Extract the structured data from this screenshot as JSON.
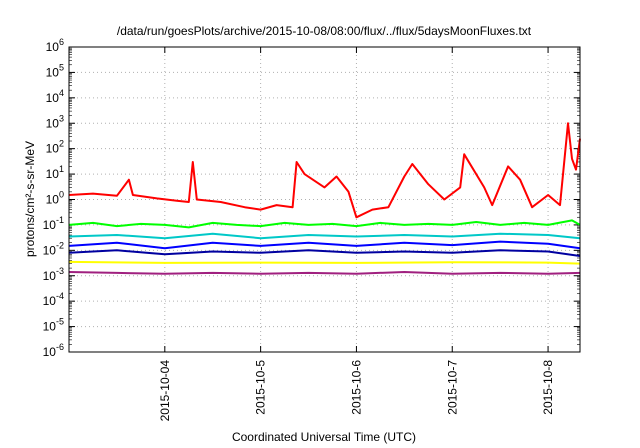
{
  "chart_data": {
    "type": "line",
    "title": "/data/run/goesPlots/archive/2015-10-08/08:00/flux/../flux/5daysMoonFluxes.txt",
    "xlabel": "Coordinated Universal Time (UTC)",
    "ylabel": "protons/cm²-s-sr-MeV",
    "yscale": "log",
    "ylim": [
      1e-06,
      1000000.0
    ],
    "xlim": [
      "2015-10-03 00:00",
      "2015-10-08 08:00"
    ],
    "x_ticks": [
      "2015-10-04",
      "2015-10-5",
      "2015-10-6",
      "2015-10-7",
      "2015-10-8"
    ],
    "y_ticks": [
      "10-6",
      "10-5",
      "10-4",
      "10-3",
      "10-2",
      "10-1",
      "100",
      "101",
      "102",
      "103",
      "104",
      "105",
      "106"
    ],
    "grid": true,
    "colors": {
      "red": "#ff0000",
      "green": "#00ff00",
      "cyan": "#00c8c8",
      "blue": "#0000ff",
      "navy": "#0000a0",
      "yellow": "#ffff00",
      "purple": "#a0207f"
    },
    "series": [
      {
        "color": "red",
        "points": [
          [
            "2015-10-03 00:00",
            1.5
          ],
          [
            "2015-10-03 06:00",
            1.7
          ],
          [
            "2015-10-03 12:00",
            1.4
          ],
          [
            "2015-10-03 15:00",
            6
          ],
          [
            "2015-10-03 16:00",
            1.5
          ],
          [
            "2015-10-03 22:00",
            1.1
          ],
          [
            "2015-10-04 03:00",
            0.9
          ],
          [
            "2015-10-04 06:00",
            0.8
          ],
          [
            "2015-10-04 07:00",
            30
          ],
          [
            "2015-10-04 08:00",
            1.0
          ],
          [
            "2015-10-04 14:00",
            0.8
          ],
          [
            "2015-10-04 20:00",
            0.5
          ],
          [
            "2015-10-05 00:00",
            0.4
          ],
          [
            "2015-10-05 04:00",
            0.6
          ],
          [
            "2015-10-05 08:00",
            0.5
          ],
          [
            "2015-10-05 09:00",
            30
          ],
          [
            "2015-10-05 11:00",
            10
          ],
          [
            "2015-10-05 16:00",
            3
          ],
          [
            "2015-10-05 19:00",
            8
          ],
          [
            "2015-10-05 22:00",
            2
          ],
          [
            "2015-10-06 00:00",
            0.2
          ],
          [
            "2015-10-06 04:00",
            0.4
          ],
          [
            "2015-10-06 08:00",
            0.5
          ],
          [
            "2015-10-06 12:00",
            8
          ],
          [
            "2015-10-06 14:00",
            25
          ],
          [
            "2015-10-06 18:00",
            4
          ],
          [
            "2015-10-06 22:00",
            1
          ],
          [
            "2015-10-07 02:00",
            3
          ],
          [
            "2015-10-07 03:00",
            60
          ],
          [
            "2015-10-07 08:00",
            3
          ],
          [
            "2015-10-07 10:00",
            0.6
          ],
          [
            "2015-10-07 14:00",
            20
          ],
          [
            "2015-10-07 17:00",
            6
          ],
          [
            "2015-10-07 20:00",
            0.5
          ],
          [
            "2015-10-08 00:00",
            1.5
          ],
          [
            "2015-10-08 03:00",
            0.6
          ],
          [
            "2015-10-08 05:00",
            1000
          ],
          [
            "2015-10-08 06:00",
            40
          ],
          [
            "2015-10-08 07:00",
            15
          ],
          [
            "2015-10-08 08:00",
            250
          ]
        ]
      },
      {
        "color": "green",
        "points": [
          [
            "2015-10-03 00:00",
            0.1
          ],
          [
            "2015-10-03 06:00",
            0.12
          ],
          [
            "2015-10-03 12:00",
            0.09
          ],
          [
            "2015-10-03 18:00",
            0.11
          ],
          [
            "2015-10-04 00:00",
            0.1
          ],
          [
            "2015-10-04 06:00",
            0.08
          ],
          [
            "2015-10-04 12:00",
            0.12
          ],
          [
            "2015-10-04 18:00",
            0.1
          ],
          [
            "2015-10-05 00:00",
            0.09
          ],
          [
            "2015-10-05 06:00",
            0.12
          ],
          [
            "2015-10-05 12:00",
            0.1
          ],
          [
            "2015-10-05 18:00",
            0.11
          ],
          [
            "2015-10-06 00:00",
            0.09
          ],
          [
            "2015-10-06 06:00",
            0.12
          ],
          [
            "2015-10-06 12:00",
            0.1
          ],
          [
            "2015-10-06 18:00",
            0.11
          ],
          [
            "2015-10-07 00:00",
            0.1
          ],
          [
            "2015-10-07 06:00",
            0.13
          ],
          [
            "2015-10-07 12:00",
            0.1
          ],
          [
            "2015-10-07 18:00",
            0.12
          ],
          [
            "2015-10-08 00:00",
            0.1
          ],
          [
            "2015-10-08 06:00",
            0.15
          ],
          [
            "2015-10-08 08:00",
            0.1
          ]
        ]
      },
      {
        "color": "cyan",
        "points": [
          [
            "2015-10-03 00:00",
            0.035
          ],
          [
            "2015-10-03 12:00",
            0.04
          ],
          [
            "2015-10-04 00:00",
            0.03
          ],
          [
            "2015-10-04 12:00",
            0.045
          ],
          [
            "2015-10-05 00:00",
            0.03
          ],
          [
            "2015-10-05 12:00",
            0.04
          ],
          [
            "2015-10-06 00:00",
            0.035
          ],
          [
            "2015-10-06 12:00",
            0.04
          ],
          [
            "2015-10-07 00:00",
            0.035
          ],
          [
            "2015-10-07 12:00",
            0.045
          ],
          [
            "2015-10-08 00:00",
            0.04
          ],
          [
            "2015-10-08 08:00",
            0.03
          ]
        ]
      },
      {
        "color": "blue",
        "points": [
          [
            "2015-10-03 00:00",
            0.015
          ],
          [
            "2015-10-03 12:00",
            0.02
          ],
          [
            "2015-10-04 00:00",
            0.012
          ],
          [
            "2015-10-04 12:00",
            0.02
          ],
          [
            "2015-10-05 00:00",
            0.015
          ],
          [
            "2015-10-05 12:00",
            0.02
          ],
          [
            "2015-10-06 00:00",
            0.015
          ],
          [
            "2015-10-06 12:00",
            0.02
          ],
          [
            "2015-10-07 00:00",
            0.016
          ],
          [
            "2015-10-07 12:00",
            0.022
          ],
          [
            "2015-10-08 00:00",
            0.018
          ],
          [
            "2015-10-08 08:00",
            0.012
          ]
        ]
      },
      {
        "color": "navy",
        "points": [
          [
            "2015-10-03 00:00",
            0.008
          ],
          [
            "2015-10-03 12:00",
            0.01
          ],
          [
            "2015-10-04 00:00",
            0.007
          ],
          [
            "2015-10-04 12:00",
            0.009
          ],
          [
            "2015-10-05 00:00",
            0.008
          ],
          [
            "2015-10-05 12:00",
            0.01
          ],
          [
            "2015-10-06 00:00",
            0.008
          ],
          [
            "2015-10-06 12:00",
            0.009
          ],
          [
            "2015-10-07 00:00",
            0.008
          ],
          [
            "2015-10-07 12:00",
            0.01
          ],
          [
            "2015-10-08 00:00",
            0.009
          ],
          [
            "2015-10-08 08:00",
            0.006
          ]
        ]
      },
      {
        "color": "yellow",
        "points": [
          [
            "2015-10-03 00:00",
            0.0035
          ],
          [
            "2015-10-04 00:00",
            0.0032
          ],
          [
            "2015-10-05 00:00",
            0.0033
          ],
          [
            "2015-10-06 00:00",
            0.0032
          ],
          [
            "2015-10-07 00:00",
            0.0034
          ],
          [
            "2015-10-08 00:00",
            0.0033
          ],
          [
            "2015-10-08 08:00",
            0.003
          ]
        ]
      },
      {
        "color": "purple",
        "points": [
          [
            "2015-10-03 00:00",
            0.0014
          ],
          [
            "2015-10-03 12:00",
            0.0013
          ],
          [
            "2015-10-04 00:00",
            0.0012
          ],
          [
            "2015-10-04 12:00",
            0.0013
          ],
          [
            "2015-10-05 00:00",
            0.0012
          ],
          [
            "2015-10-05 12:00",
            0.0013
          ],
          [
            "2015-10-06 00:00",
            0.0012
          ],
          [
            "2015-10-06 12:00",
            0.0014
          ],
          [
            "2015-10-07 00:00",
            0.0012
          ],
          [
            "2015-10-07 12:00",
            0.0013
          ],
          [
            "2015-10-08 00:00",
            0.0012
          ],
          [
            "2015-10-08 08:00",
            0.0013
          ]
        ]
      }
    ]
  }
}
